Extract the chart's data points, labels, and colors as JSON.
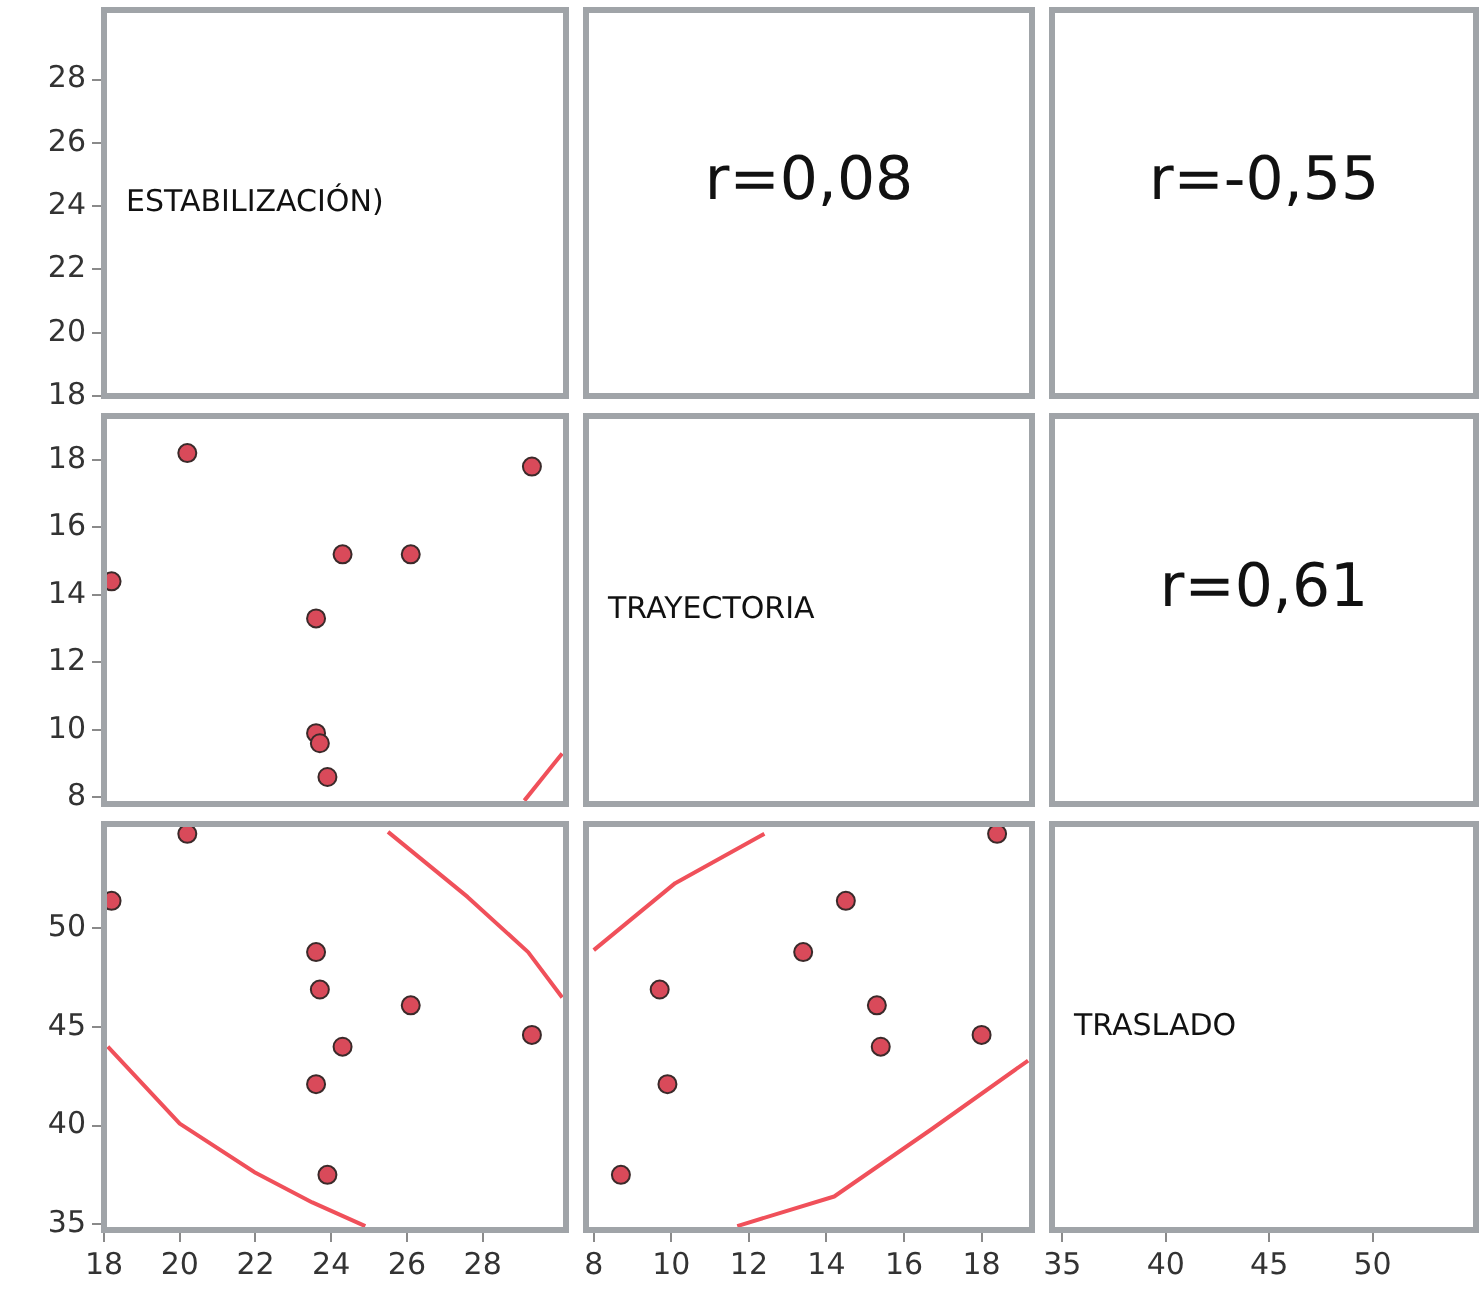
{
  "chart_data": [
    {
      "type": "scatter",
      "annotations": [
        "ESTABILIZACIÓN)"
      ],
      "xlim": [
        18,
        30.2
      ],
      "ylim": [
        18,
        30.2
      ],
      "yticks": [
        18,
        20,
        22,
        24,
        26,
        28
      ],
      "tick_labels": "y"
    },
    {
      "type": "other",
      "annotations": [
        "r=0,08"
      ]
    },
    {
      "type": "other",
      "annotations": [
        "r=-0,55"
      ]
    },
    {
      "type": "scatter",
      "xlim": [
        18,
        30.2
      ],
      "ylim": [
        7.8,
        19.3
      ],
      "yticks": [
        8,
        10,
        12,
        14,
        16,
        18
      ],
      "tick_labels": "y",
      "marker": "circle",
      "series": [
        {
          "color": "#d94a5a",
          "x": [
            18.2,
            20.2,
            24.3,
            26.1,
            29.3,
            23.6,
            23.6,
            23.7,
            23.9
          ],
          "values": [
            14.4,
            18.2,
            15.2,
            15.2,
            17.8,
            13.3,
            9.9,
            9.6,
            8.6
          ]
        },
        {
          "type": "line",
          "marker": "none",
          "color": "#f0505a",
          "x": [
            29.1,
            29.6,
            30.1
          ],
          "values": [
            7.9,
            8.6,
            9.3
          ]
        }
      ]
    },
    {
      "type": "other",
      "annotations": [
        "TRAYECTORIA"
      ]
    },
    {
      "type": "other",
      "annotations": [
        "r=0,61"
      ]
    },
    {
      "type": "scatter",
      "xlim": [
        18,
        30.2
      ],
      "ylim": [
        34.7,
        55.3
      ],
      "xticks": [
        18,
        20,
        22,
        24,
        26,
        28
      ],
      "yticks": [
        35,
        40,
        45,
        50
      ],
      "marker": "circle",
      "series": [
        {
          "color": "#d94a5a",
          "x": [
            18.2,
            20.2,
            24.3,
            26.1,
            29.3,
            23.6,
            23.6,
            23.7,
            23.9
          ],
          "values": [
            51.4,
            54.8,
            44.0,
            46.1,
            44.6,
            48.8,
            42.1,
            46.9,
            37.5
          ]
        },
        {
          "type": "line",
          "marker": "none",
          "color": "#f0505a",
          "x": [
            25.5,
            27.6,
            29.2,
            30.1
          ],
          "values": [
            54.9,
            51.6,
            48.8,
            46.5
          ]
        },
        {
          "type": "line",
          "marker": "none",
          "color": "#f0505a",
          "x": [
            18.1,
            20.0,
            22.0,
            23.5,
            24.9
          ],
          "values": [
            44.0,
            40.1,
            37.6,
            36.1,
            34.9
          ]
        }
      ]
    },
    {
      "type": "scatter",
      "xlim": [
        7.8,
        19.3
      ],
      "ylim": [
        34.7,
        55.3
      ],
      "xticks": [
        8,
        10,
        12,
        14,
        16,
        18
      ],
      "tick_labels": "x",
      "marker": "circle",
      "series": [
        {
          "color": "#d94a5a",
          "x": [
            14.5,
            18.4,
            15.4,
            15.3,
            18.0,
            13.4,
            9.9,
            9.7,
            8.7
          ],
          "values": [
            51.4,
            54.8,
            44.0,
            46.1,
            44.6,
            48.8,
            42.1,
            46.9,
            37.5
          ]
        },
        {
          "type": "line",
          "marker": "none",
          "color": "#f0505a",
          "x": [
            8.0,
            10.1,
            12.4
          ],
          "values": [
            48.9,
            52.3,
            54.8
          ]
        },
        {
          "type": "line",
          "marker": "none",
          "color": "#f0505a",
          "x": [
            11.7,
            14.2,
            16.7,
            19.2
          ],
          "values": [
            34.9,
            36.4,
            39.8,
            43.3
          ]
        }
      ]
    },
    {
      "type": "scatter",
      "annotations": [
        "TRASLADO"
      ],
      "xlim": [
        34.5,
        55
      ],
      "ylim": [
        34.7,
        55.3
      ],
      "xticks": [
        35,
        40,
        45,
        50
      ],
      "tick_labels": "x"
    }
  ]
}
